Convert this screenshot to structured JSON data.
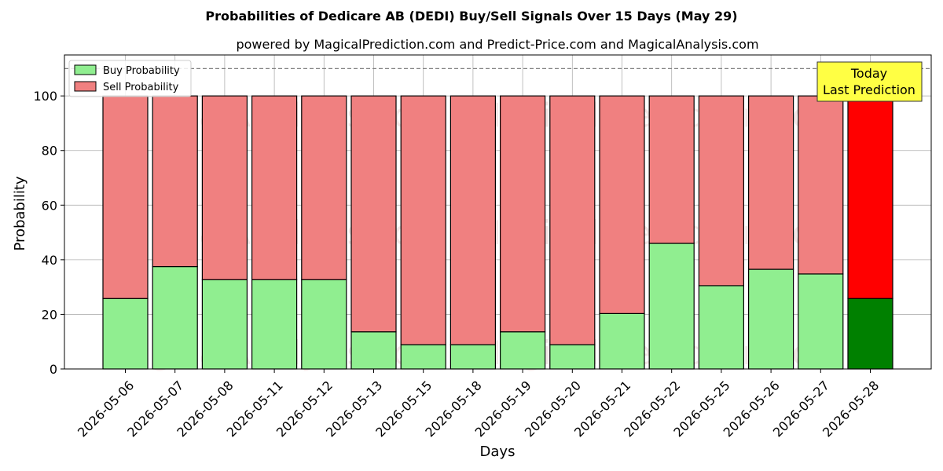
{
  "chart_data": {
    "type": "bar",
    "stacked": true,
    "title": "Probabilities of Dedicare AB (DEDI) Buy/Sell Signals Over 15 Days (May 29)",
    "subtitle": "powered by MagicalPrediction.com and Predict-Price.com and MagicalAnalysis.com",
    "xlabel": "Days",
    "ylabel": "Probability",
    "ylim": [
      0,
      115
    ],
    "yticks": [
      0,
      20,
      40,
      60,
      80,
      100
    ],
    "grid": true,
    "legend_position": "top-left",
    "reference_line": 110,
    "categories": [
      "2026-05-06",
      "2026-05-07",
      "2026-05-08",
      "2026-05-11",
      "2026-05-12",
      "2026-05-13",
      "2026-05-15",
      "2026-05-18",
      "2026-05-19",
      "2026-05-20",
      "2026-05-21",
      "2026-05-22",
      "2026-05-25",
      "2026-05-26",
      "2026-05-27",
      "2026-05-28"
    ],
    "series": [
      {
        "name": "Buy Probability",
        "color": "#90EE90",
        "highlight_color": "#008000",
        "values": [
          25.8,
          37.5,
          32.7,
          32.7,
          32.7,
          13.6,
          8.9,
          8.9,
          13.6,
          8.9,
          20.3,
          46.0,
          30.5,
          36.5,
          34.8,
          25.8
        ]
      },
      {
        "name": "Sell Probability",
        "color": "#F08080",
        "highlight_color": "#FF0000",
        "values": [
          74.2,
          62.5,
          67.3,
          67.3,
          67.3,
          86.4,
          91.1,
          91.1,
          86.4,
          91.1,
          79.7,
          54.0,
          69.5,
          63.5,
          65.2,
          74.2
        ]
      }
    ],
    "highlight_index": 15,
    "annotation": {
      "lines": [
        "Today",
        "Last Prediction"
      ],
      "bg": "#FFFF44"
    },
    "watermarks": [
      "MagicalAnalysis.com",
      "MagicalPrediction.com"
    ]
  }
}
